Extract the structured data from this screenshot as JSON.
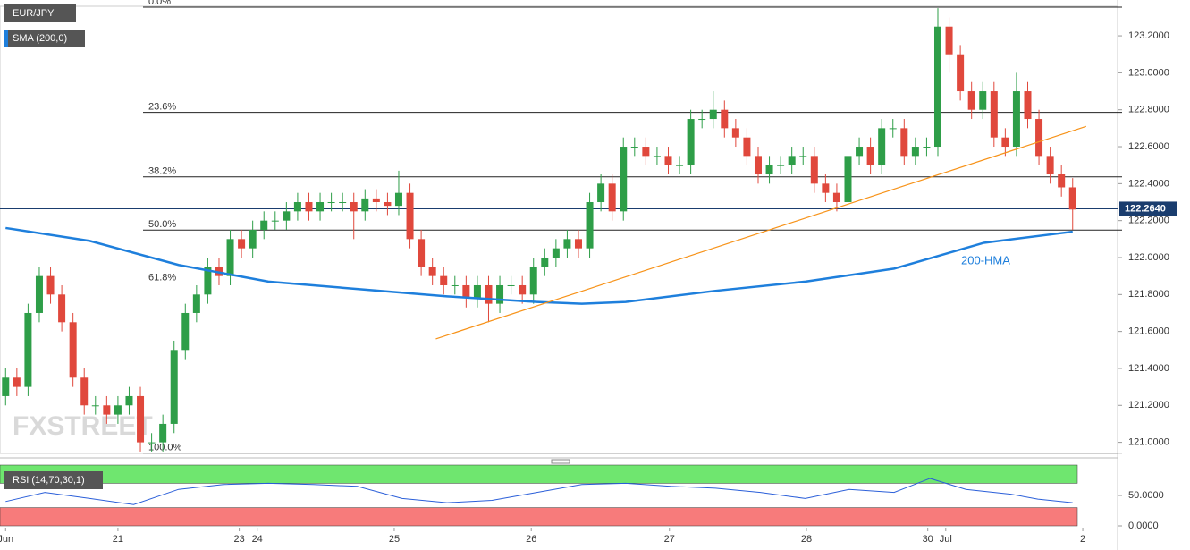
{
  "chart_data": [
    {
      "type": "candlestick",
      "title": "EUR/JPY",
      "indicator": "SMA (200,0)",
      "watermark": "FXSTREET",
      "up_color": "#2e9e48",
      "down_color": "#e0483c",
      "xlim": [
        -0.5,
        99
      ],
      "ylim": [
        120.94,
        123.36
      ],
      "xticks": [
        {
          "value": 0,
          "label": "Jun"
        },
        {
          "value": 10,
          "label": "21"
        },
        {
          "value": 20.8,
          "label": "23"
        },
        {
          "value": 22.4,
          "label": "24"
        },
        {
          "value": 34.6,
          "label": "25"
        },
        {
          "value": 46.8,
          "label": "26"
        },
        {
          "value": 59.1,
          "label": "27"
        },
        {
          "value": 71.3,
          "label": "28"
        },
        {
          "value": 82.1,
          "label": "30"
        },
        {
          "value": 83.7,
          "label": "Jul"
        },
        {
          "value": 95.9,
          "label": "2"
        }
      ],
      "yticks": [
        {
          "value": 121,
          "label": "121.0000"
        },
        {
          "value": 121.2,
          "label": "121.2000"
        },
        {
          "value": 121.4,
          "label": "121.4000"
        },
        {
          "value": 121.6,
          "label": "121.6000"
        },
        {
          "value": 121.8,
          "label": "121.8000"
        },
        {
          "value": 122,
          "label": "122.0000"
        },
        {
          "value": 122.2,
          "label": "122.2000"
        },
        {
          "value": 122.4,
          "label": "122.4000"
        },
        {
          "value": 122.6,
          "label": "122.6000"
        },
        {
          "value": 122.8,
          "label": "122.8000"
        },
        {
          "value": 123,
          "label": "123.0000"
        },
        {
          "value": 123.2,
          "label": "123.2000"
        }
      ],
      "open": [
        121.25,
        121.35,
        121.3,
        121.7,
        121.9,
        121.8,
        121.65,
        121.35,
        121.2,
        121.2,
        121.15,
        121.2,
        121.25,
        121.0,
        121.0,
        121.1,
        121.5,
        121.7,
        121.8,
        121.95,
        121.9,
        122.1,
        122.05,
        122.15,
        122.2,
        122.2,
        122.25,
        122.3,
        122.25,
        122.3,
        122.3,
        122.3,
        122.25,
        122.32,
        122.3,
        122.28,
        122.35,
        122.1,
        121.95,
        121.9,
        121.85,
        121.85,
        121.78,
        121.85,
        121.75,
        121.85,
        121.85,
        121.8,
        121.95,
        122.0,
        122.05,
        122.1,
        122.05,
        122.3,
        122.4,
        122.25,
        122.6,
        122.6,
        122.55,
        122.55,
        122.5,
        122.5,
        122.75,
        122.75,
        122.8,
        122.7,
        122.65,
        122.55,
        122.45,
        122.5,
        122.5,
        122.55,
        122.55,
        122.4,
        122.35,
        122.3,
        122.55,
        122.6,
        122.5,
        122.7,
        122.7,
        122.55,
        122.6,
        122.6,
        123.25,
        123.1,
        122.9,
        122.8,
        122.9,
        122.65,
        122.6,
        122.9,
        122.75,
        122.55,
        122.45,
        122.38
      ],
      "high": [
        121.4,
        121.4,
        121.75,
        121.95,
        121.95,
        121.85,
        121.7,
        121.4,
        121.25,
        121.25,
        121.25,
        121.3,
        121.3,
        121.05,
        121.15,
        121.55,
        121.75,
        121.85,
        122.0,
        122.0,
        122.15,
        122.15,
        122.2,
        122.25,
        122.25,
        122.3,
        122.35,
        122.35,
        122.35,
        122.35,
        122.35,
        122.35,
        122.37,
        122.37,
        122.35,
        122.47,
        122.4,
        122.15,
        122.0,
        121.95,
        121.9,
        121.9,
        121.9,
        121.9,
        121.9,
        121.9,
        121.9,
        122.0,
        122.05,
        122.1,
        122.15,
        122.15,
        122.35,
        122.45,
        122.45,
        122.65,
        122.65,
        122.65,
        122.6,
        122.6,
        122.55,
        122.8,
        122.8,
        122.9,
        122.85,
        122.75,
        122.7,
        122.6,
        122.55,
        122.55,
        122.6,
        122.6,
        122.6,
        122.45,
        122.4,
        122.6,
        122.65,
        122.65,
        122.75,
        122.75,
        122.75,
        122.65,
        122.65,
        123.35,
        123.3,
        123.15,
        122.95,
        122.95,
        122.95,
        122.7,
        123.0,
        122.95,
        122.8,
        122.6,
        122.5,
        122.43
      ],
      "low": [
        121.2,
        121.25,
        121.25,
        121.65,
        121.75,
        121.6,
        121.3,
        121.15,
        121.15,
        121.1,
        121.1,
        121.15,
        120.95,
        120.95,
        120.95,
        121.05,
        121.45,
        121.65,
        121.75,
        121.85,
        121.85,
        122.0,
        122.0,
        122.1,
        122.15,
        122.15,
        122.2,
        122.2,
        122.2,
        122.25,
        122.25,
        122.1,
        122.2,
        122.25,
        122.23,
        122.23,
        122.05,
        121.9,
        121.85,
        121.8,
        121.8,
        121.73,
        121.73,
        121.65,
        121.7,
        121.8,
        121.75,
        121.75,
        121.9,
        121.95,
        122.0,
        122.0,
        122.0,
        122.25,
        122.2,
        122.2,
        122.55,
        122.5,
        122.5,
        122.45,
        122.45,
        122.45,
        122.7,
        122.7,
        122.65,
        122.6,
        122.5,
        122.4,
        122.4,
        122.45,
        122.45,
        122.5,
        122.35,
        122.3,
        122.25,
        122.25,
        122.5,
        122.45,
        122.45,
        122.65,
        122.5,
        122.5,
        122.55,
        122.55,
        123.0,
        122.85,
        122.75,
        122.75,
        122.6,
        122.55,
        122.55,
        122.7,
        122.5,
        122.4,
        122.33,
        122.15
      ],
      "close": [
        121.35,
        121.3,
        121.7,
        121.9,
        121.8,
        121.65,
        121.35,
        121.2,
        121.2,
        121.15,
        121.2,
        121.25,
        121.0,
        121.0,
        121.1,
        121.5,
        121.7,
        121.8,
        121.95,
        121.9,
        122.1,
        122.05,
        122.15,
        122.2,
        122.2,
        122.25,
        122.3,
        122.25,
        122.3,
        122.3,
        122.3,
        122.25,
        122.32,
        122.3,
        122.28,
        122.35,
        122.1,
        121.95,
        121.9,
        121.85,
        121.85,
        121.78,
        121.85,
        121.75,
        121.85,
        121.85,
        121.8,
        121.95,
        122.0,
        122.05,
        122.1,
        122.05,
        122.3,
        122.4,
        122.25,
        122.6,
        122.6,
        122.55,
        122.55,
        122.5,
        122.5,
        122.75,
        122.75,
        122.8,
        122.7,
        122.65,
        122.55,
        122.45,
        122.5,
        122.5,
        122.55,
        122.55,
        122.4,
        122.35,
        122.3,
        122.55,
        122.6,
        122.5,
        122.7,
        122.7,
        122.55,
        122.6,
        122.6,
        123.25,
        123.1,
        122.9,
        122.8,
        122.9,
        122.65,
        122.6,
        122.9,
        122.75,
        122.55,
        122.45,
        122.38,
        122.26
      ],
      "lines": [
        {
          "name": "SMA (200,0)",
          "color": "#1e7fdc",
          "x": [
            0,
            7.5,
            15.4,
            23.4,
            31.3,
            39.3,
            47.3,
            51.3,
            55.2,
            63.2,
            71.2,
            79.1,
            83.1,
            87.1,
            95
          ],
          "values": [
            122.16,
            122.09,
            121.96,
            121.87,
            121.83,
            121.79,
            121.76,
            121.75,
            121.76,
            121.82,
            121.87,
            121.94,
            122.01,
            122.08,
            122.14
          ]
        },
        {
          "color": "#f7931a",
          "x": [
            38.3,
            96.2
          ],
          "values": [
            121.56,
            122.71
          ]
        }
      ],
      "annotations": [
        "200-HMA"
      ],
      "levels": [
        {
          "label": "0.0%",
          "value": 123.355
        },
        {
          "label": "23.6%",
          "value": 122.786
        },
        {
          "label": "38.2%",
          "value": 122.437
        },
        {
          "label": "50.0%",
          "value": 122.149
        },
        {
          "label": "61.8%",
          "value": 121.862
        },
        {
          "label": "100.0%",
          "value": 120.942
        }
      ],
      "last_price": {
        "value": 122.264,
        "label": "122.2640"
      }
    },
    {
      "type": "line",
      "title": "RSI (14,70,30,1)",
      "color": "#2b5fd9",
      "xlim": [
        -0.5,
        99
      ],
      "ylim": [
        0,
        100
      ],
      "yticks": [
        {
          "value": 0,
          "label": "0.0000"
        },
        {
          "value": 50,
          "label": "50.0000"
        }
      ],
      "bands": [
        {
          "from": 70,
          "to": 100,
          "color": "#6fe66f"
        },
        {
          "from": 0,
          "to": 30,
          "color": "#f77b7b"
        }
      ],
      "x": [
        0,
        3.5,
        7.5,
        11.4,
        15.4,
        19.4,
        23.4,
        27.4,
        31.3,
        35.3,
        39.3,
        43.3,
        47.3,
        51.3,
        55.2,
        59.2,
        63.2,
        67.2,
        71.2,
        75.1,
        79.1,
        82.3,
        85.5,
        89.5,
        91.9,
        95
      ],
      "values": [
        40,
        55,
        45,
        35,
        60,
        68,
        70,
        68,
        65,
        45,
        38,
        42,
        55,
        68,
        70,
        65,
        62,
        55,
        45,
        60,
        55,
        78,
        60,
        52,
        44,
        38
      ]
    }
  ]
}
